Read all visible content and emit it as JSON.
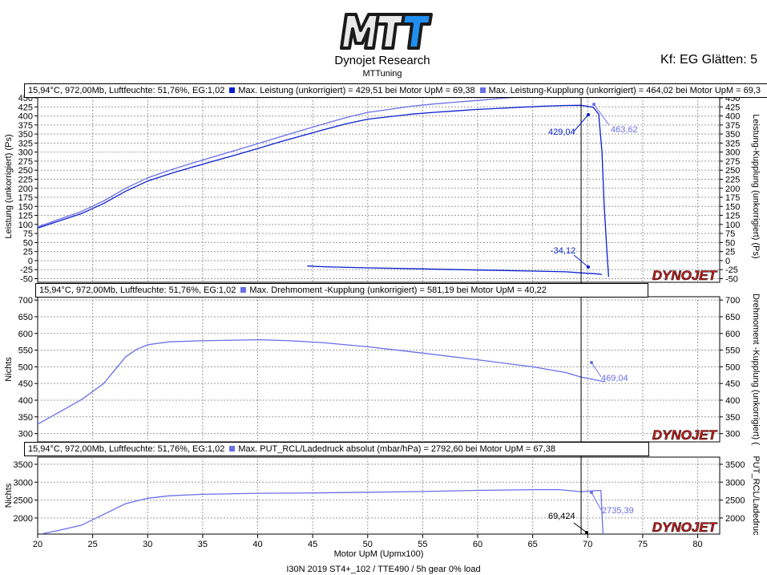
{
  "header": {
    "logo_text": "MTT",
    "brand": "Dynojet Research",
    "brand_sub": "MTTuning",
    "kf": "Kf: EG Glätten: 5",
    "footer": "I30N 2019 ST4+_102 / TTE490 / 5h gear 0% load"
  },
  "watermark": "DYNOJET",
  "colors": {
    "series_dark": "#0a1fd0",
    "series_light": "#6a6ee8",
    "grid": "#9a9a9a"
  },
  "chart_data": [
    {
      "type": "line",
      "legend": {
        "conditions": "15,94°C, 972,00Mb, Luftfeuchte: 51,76%, EG:1,02",
        "entries": [
          "Max. Leistung (unkorrigiert) = 429,51 bei Motor UpM = 69,38",
          "Max. Leistung-Kupplung (unkorrigiert) = 464,02 bei Motor UpM = 69,3"
        ]
      },
      "ylabel": "Leistung (unkorrigiert) (Ps)",
      "ylabel_right": "Leistung-Kupplung (unkorrigiert) (Ps)",
      "ylim": [
        -60,
        470
      ],
      "yticks": [
        -50,
        -25,
        0,
        25,
        50,
        75,
        100,
        125,
        150,
        175,
        200,
        225,
        250,
        275,
        300,
        325,
        350,
        375,
        400,
        425,
        450
      ],
      "series": [
        {
          "x": [
            20,
            22,
            24,
            26,
            28,
            30,
            32,
            34,
            36,
            38,
            40,
            42,
            44,
            46,
            48,
            50,
            52,
            54,
            56,
            58,
            60,
            62,
            64,
            66,
            68,
            69.4,
            70.5,
            71.0,
            71.3,
            71.5,
            71.8,
            71.9
          ],
          "y": [
            90,
            110,
            130,
            158,
            192,
            220,
            240,
            258,
            275,
            292,
            310,
            328,
            345,
            362,
            378,
            391,
            398,
            405,
            410,
            414,
            418,
            421,
            424,
            427,
            429,
            429.5,
            424,
            405,
            300,
            150,
            0,
            -45
          ]
        },
        {
          "x": [
            20,
            22,
            24,
            26,
            28,
            30,
            32,
            34,
            36,
            38,
            40,
            42,
            44,
            46,
            48,
            50,
            52,
            54,
            56,
            58,
            60,
            62,
            64,
            66,
            68,
            69.3,
            70.5,
            71.5
          ],
          "y": [
            93,
            115,
            136,
            165,
            200,
            229,
            250,
            269,
            287,
            305,
            323,
            342,
            360,
            378,
            395,
            410,
            418,
            427,
            433,
            438,
            443,
            448,
            453,
            458,
            462,
            464,
            463,
            460
          ]
        },
        {
          "x": [
            44.5,
            46,
            50,
            55,
            60,
            65,
            68,
            69.4,
            70.5,
            71.3
          ],
          "y": [
            -15,
            -17,
            -20,
            -23,
            -26,
            -29,
            -31,
            -34,
            -36,
            -38
          ]
        }
      ],
      "annotations": [
        "429,04",
        "463,62",
        "-34,12"
      ]
    },
    {
      "type": "line",
      "legend": {
        "conditions": "15,94°C, 972,00Mb, Luftfeuchte: 51,76%, EG:1,02",
        "entries": [
          "Max. Drehmoment -Kupplung (unkorrigiert) = 581,19 bei Motor UpM = 40,22"
        ]
      },
      "ylabel": "Nichts",
      "ylabel_right": "Drehmoment -Kupplung (unkorrigiert) (",
      "ylim": [
        275,
        710
      ],
      "yticks": [
        300,
        350,
        400,
        450,
        500,
        550,
        600,
        650,
        700
      ],
      "series": [
        {
          "x": [
            20,
            22,
            24,
            26,
            28,
            29,
            30,
            32,
            35,
            38,
            40.2,
            43,
            46,
            50,
            55,
            60,
            65,
            68,
            69.4,
            71.6
          ],
          "y": [
            328,
            365,
            402,
            450,
            530,
            552,
            566,
            575,
            578,
            580,
            581.2,
            578,
            572,
            560,
            541,
            521,
            500,
            483,
            469,
            455
          ]
        }
      ],
      "annotations": [
        "469,04"
      ]
    },
    {
      "type": "line",
      "legend": {
        "conditions": "15,94°C, 972,00Mb, Luftfeuchte: 51,76%, EG:1,02",
        "entries": [
          "Max. PUT_RCL/Ladedruck absolut (mbar/hPa)  = 2792,60 bei Motor UpM = 67,38"
        ]
      },
      "ylabel": "Nichts",
      "ylabel_right": "PUT_RCL/Ladedruc",
      "ylim": [
        1550,
        3700
      ],
      "yticks": [
        2000,
        2500,
        3000,
        3500
      ],
      "series": [
        {
          "x": [
            20.4,
            22,
            24,
            26,
            28,
            30,
            32,
            35,
            40,
            45,
            50,
            55,
            60,
            65,
            67.4,
            69.4,
            70.5,
            71.2,
            71.3,
            71.4
          ],
          "y": [
            1560,
            1660,
            1800,
            2100,
            2400,
            2550,
            2620,
            2660,
            2690,
            2700,
            2720,
            2740,
            2770,
            2790,
            2792.6,
            2735,
            2760,
            2770,
            2100,
            1550
          ]
        }
      ],
      "annotations": [
        "69,424",
        "2735,39"
      ]
    }
  ],
  "x_axis": {
    "label": "Motor UpM (Upmx100)",
    "range": [
      20,
      82
    ],
    "ticks": [
      20,
      25,
      30,
      35,
      40,
      45,
      50,
      55,
      60,
      65,
      70,
      75,
      80
    ],
    "cursor_x": 69.4
  }
}
